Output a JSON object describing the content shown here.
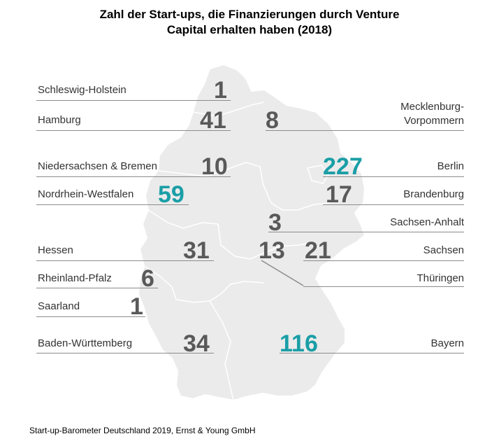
{
  "title_line1": "Zahl der Start-ups, die Finanzierungen durch Venture",
  "title_line2": "Capital erhalten haben (2018)",
  "highlight_color": "#1a9ea6",
  "value_color": "#595959",
  "map_color": "#ebebeb",
  "states": {
    "schleswig_holstein": {
      "name": "Schleswig-Holstein",
      "value": "1"
    },
    "hamburg": {
      "name": "Hamburg",
      "value": "41"
    },
    "mecklenburg_vorpommern": {
      "name_line1": "Mecklenburg-",
      "name_line2": "Vorpommern",
      "value": "8"
    },
    "niedersachsen_bremen": {
      "name": "Niedersachsen & Bremen",
      "value": "10"
    },
    "berlin": {
      "name": "Berlin",
      "value": "227"
    },
    "nordrhein_westfalen": {
      "name": "Nordrhein-Westfalen",
      "value": "59"
    },
    "brandenburg": {
      "name": "Brandenburg",
      "value": "17"
    },
    "sachsen_anhalt": {
      "name": "Sachsen-Anhalt",
      "value": "3"
    },
    "hessen": {
      "name": "Hessen",
      "value": "31"
    },
    "thueringen": {
      "name": "Thüringen",
      "value": "13"
    },
    "sachsen": {
      "name": "Sachsen",
      "value": "21"
    },
    "rheinland_pfalz": {
      "name": "Rheinland-Pfalz",
      "value": "6"
    },
    "saarland": {
      "name": "Saarland",
      "value": "1"
    },
    "baden_wuerttemberg": {
      "name": "Baden-Württemberg",
      "value": "34"
    },
    "bayern": {
      "name": "Bayern",
      "value": "116"
    }
  },
  "source": "Start-up-Barometer Deutschland 2019, Ernst & Young GmbH"
}
